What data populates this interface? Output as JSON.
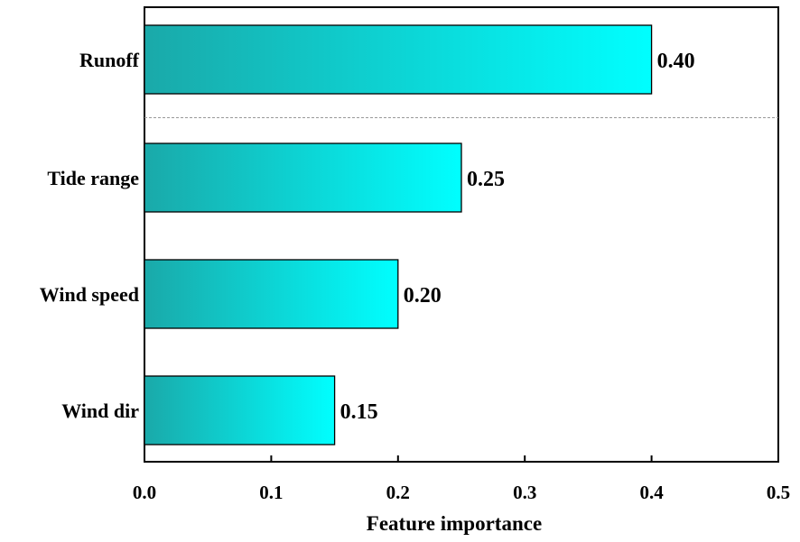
{
  "chart_data": {
    "type": "bar",
    "orientation": "horizontal",
    "categories": [
      "Runoff",
      "Tide range",
      "Wind speed",
      "Wind dir"
    ],
    "values": [
      0.4,
      0.25,
      0.2,
      0.15
    ],
    "value_labels": [
      "0.40",
      "0.25",
      "0.20",
      "0.15"
    ],
    "xlabel": "Feature importance",
    "ylabel": "",
    "xlim": [
      0.0,
      0.5
    ],
    "xticks": [
      0.0,
      0.1,
      0.2,
      0.3,
      0.4,
      0.5
    ],
    "xtick_labels": [
      "0.0",
      "0.1",
      "0.2",
      "0.3",
      "0.4",
      "0.5"
    ],
    "grid": false,
    "separator_after_category": "Runoff",
    "colors": {
      "bar_gradient_start": "#1aa9a9",
      "bar_gradient_end": "#00ffff",
      "bar_edge": "#000000",
      "separator": "#999999"
    }
  }
}
